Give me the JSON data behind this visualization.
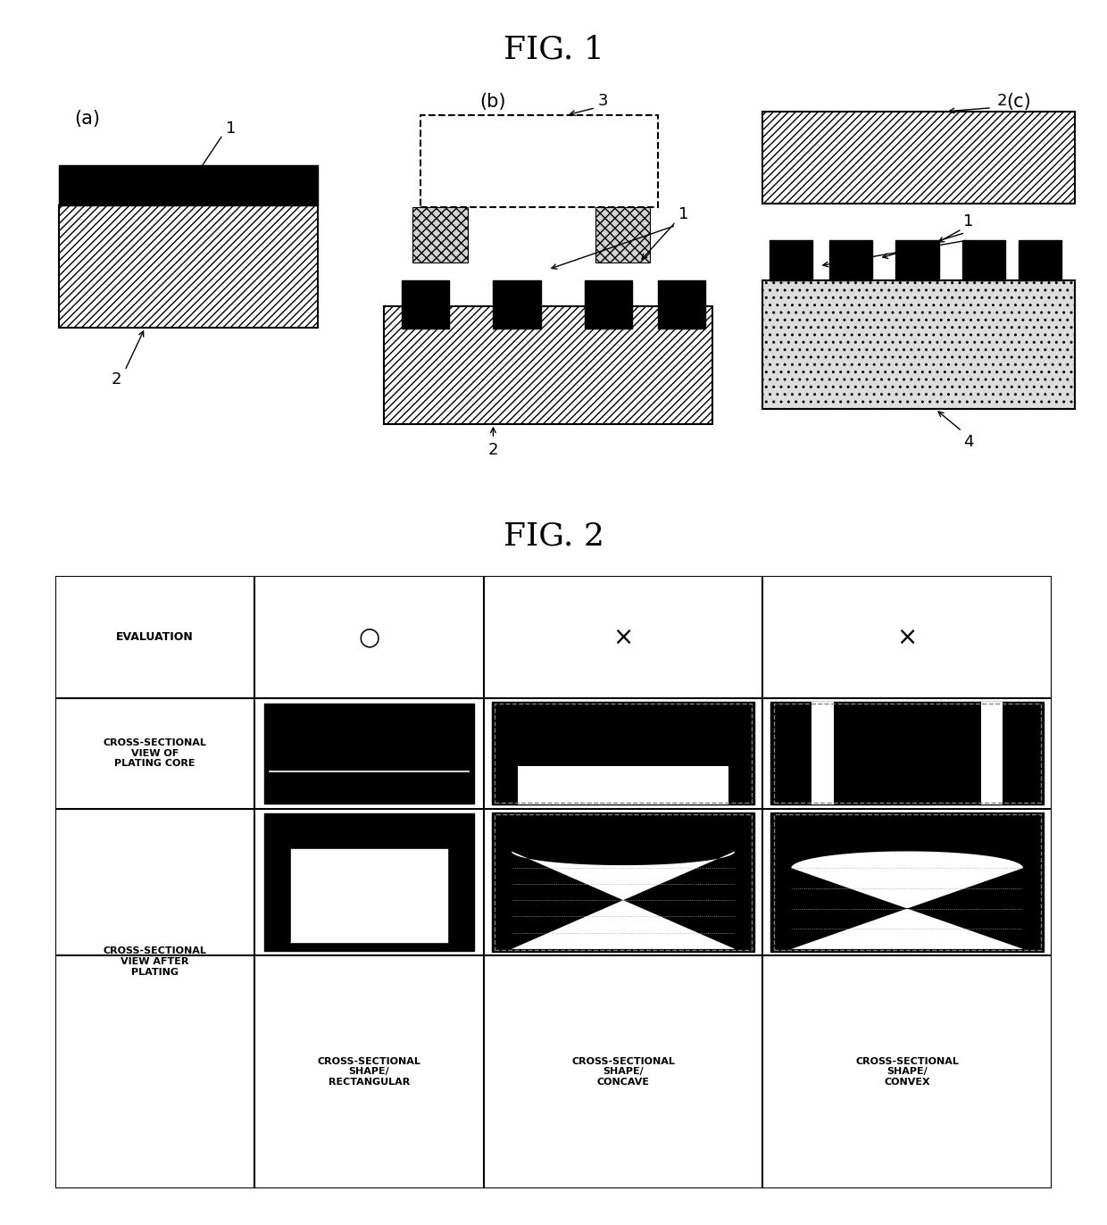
{
  "fig1_title": "FIG. 1",
  "fig2_title": "FIG. 2",
  "bg_color": "#ffffff",
  "table_headers": [
    "EVALUATION",
    "○",
    "×",
    "×"
  ],
  "row1_label": "CROSS-SECTIONAL\nVIEW OF\nPLATING CORE",
  "row2_label": "CROSS-SECTIONAL\nVIEW AFTER\nPLATING",
  "col_labels": [
    "CROSS-SECTIONAL\nSHAPE/\nRECTANGULAR",
    "CROSS-SECTIONAL\nSHAPE/\nCONCAVE",
    "CROSS-SECTIONAL\nSHAPE/\nCONVEX"
  ]
}
